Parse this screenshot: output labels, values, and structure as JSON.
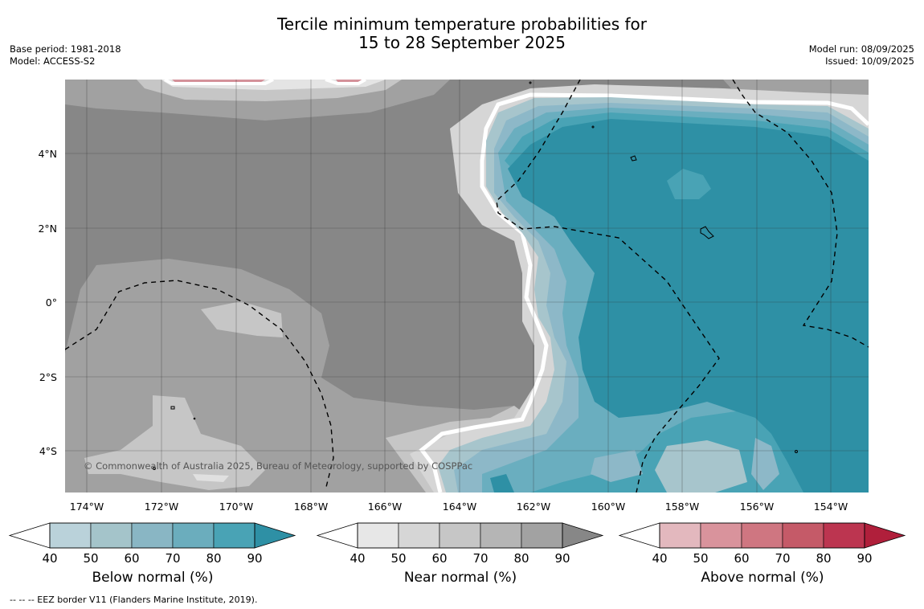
{
  "title": {
    "line1": "Tercile minimum temperature probabilities for",
    "line2": "15 to 28 September 2025"
  },
  "meta_left": {
    "base_period": "Base period: 1981-2018",
    "model": "Model: ACCESS-S2"
  },
  "meta_right": {
    "model_run": "Model run: 08/09/2025",
    "issued": "Issued: 10/09/2025"
  },
  "map": {
    "lon_labels": [
      "174°W",
      "172°W",
      "170°W",
      "168°W",
      "166°W",
      "164°W",
      "162°W",
      "160°W",
      "158°W",
      "156°W",
      "154°W"
    ],
    "lat_labels": [
      "4°N",
      "2°N",
      "0°",
      "2°S",
      "4°S"
    ],
    "copyright": "© Commonwealth of Australia 2025, Bureau of Meteorology, supported by COSPPac",
    "colors": {
      "near_base": "#878787",
      "near_light": "#a1a1a1",
      "near_lighter": "#c6c6c6",
      "below_90": "#2e90a5",
      "below_80": "#49a3b5",
      "below_70": "#6aaebf",
      "below_60": "#8db8c8",
      "below_50": "#a7c5cc",
      "above_50": "#d4919a"
    }
  },
  "colorbars": [
    {
      "title": "Below normal (%)",
      "ticks": [
        "40",
        "50",
        "60",
        "70",
        "80",
        "90"
      ],
      "colors": [
        "#bad2da",
        "#a4c4ca",
        "#89b6c4",
        "#6badbd",
        "#49a3b5",
        "#2e90a5"
      ]
    },
    {
      "title": "Near normal (%)",
      "ticks": [
        "40",
        "50",
        "60",
        "70",
        "80",
        "90"
      ],
      "colors": [
        "#e7e7e7",
        "#d6d6d6",
        "#c6c6c6",
        "#b5b5b5",
        "#a2a2a2",
        "#878787"
      ]
    },
    {
      "title": "Above normal (%)",
      "ticks": [
        "40",
        "50",
        "60",
        "70",
        "80",
        "90"
      ],
      "colors": [
        "#e3b8be",
        "#d9939c",
        "#cf7681",
        "#c55a68",
        "#bc3550",
        "#b01f3b"
      ]
    }
  ],
  "footnote": "--  --  -- EEZ border V11 (Flanders Marine Institute, 2019)."
}
